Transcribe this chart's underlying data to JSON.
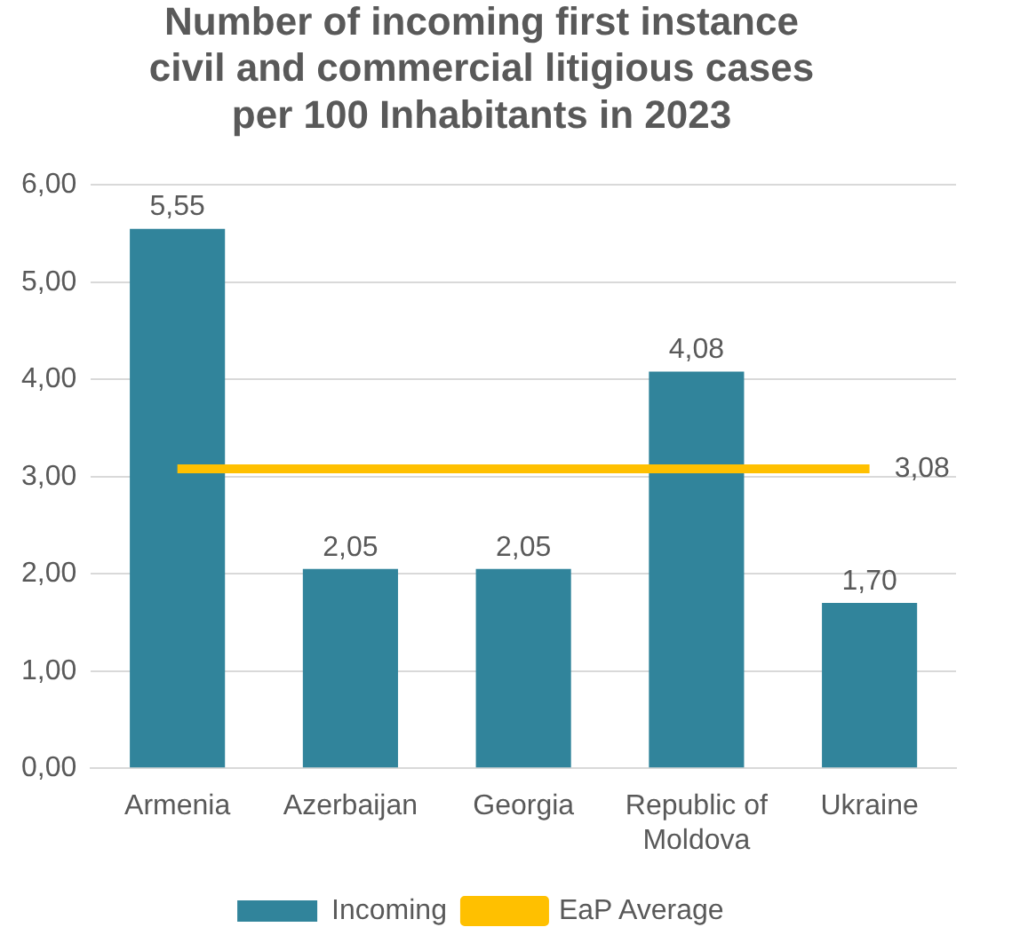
{
  "chart_data": {
    "type": "bar",
    "title": "Number of incoming first instance civil and commercial litigious cases per 100 Inhabitants in 2023",
    "categories": [
      "Armenia",
      "Azerbaijan",
      "Georgia",
      "Republic of Moldova",
      "Ukraine"
    ],
    "series": [
      {
        "name": "Incoming",
        "color": "#31849b",
        "values": [
          5.55,
          2.05,
          2.05,
          4.08,
          1.7
        ],
        "value_labels": [
          "5,55",
          "2,05",
          "2,05",
          "4,08",
          "1,70"
        ]
      },
      {
        "name": "EaP Average",
        "type": "line",
        "color": "#ffc000",
        "values": [
          3.08,
          3.08,
          3.08,
          3.08,
          3.08
        ],
        "value_labels": [
          null,
          null,
          null,
          null,
          "3,08"
        ]
      }
    ],
    "ylim": [
      0,
      6
    ],
    "yticks": [
      {
        "value": 0,
        "label": "0,00"
      },
      {
        "value": 1,
        "label": "1,00"
      },
      {
        "value": 2,
        "label": "2,00"
      },
      {
        "value": 3,
        "label": "3,00"
      },
      {
        "value": 4,
        "label": "4,00"
      },
      {
        "value": 5,
        "label": "5,00"
      },
      {
        "value": 6,
        "label": "6,00"
      }
    ],
    "grid": "y",
    "legend": "bottom",
    "marker": "none"
  }
}
